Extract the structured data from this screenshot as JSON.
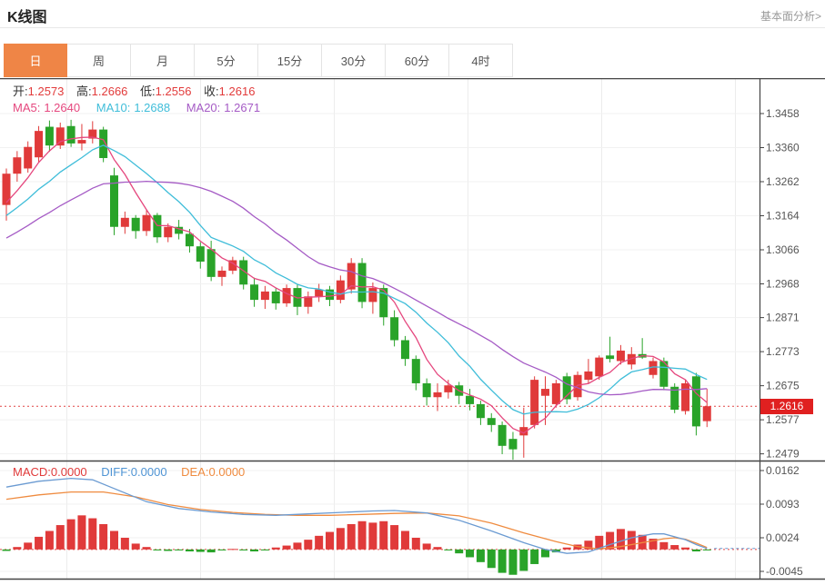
{
  "header": {
    "title": "K线图",
    "link": "基本面分析>"
  },
  "tabs": {
    "items": [
      "日",
      "周",
      "月",
      "5分",
      "15分",
      "30分",
      "60分",
      "4时"
    ],
    "selected": "日",
    "selected_index": 0
  },
  "quote": {
    "open_label": "开:",
    "open": "1.2573",
    "high_label": "高:",
    "high": "1.2666",
    "low_label": "低:",
    "low": "1.2556",
    "close_label": "收:",
    "close": "1.2616"
  },
  "ma_legend": {
    "ma5_label": "MA5:",
    "ma5": "1.2640",
    "ma10_label": "MA10:",
    "ma10": "1.2688",
    "ma20_label": "MA20:",
    "ma20": "1.2671"
  },
  "macd_legend": {
    "macd_label": "MACD:",
    "macd": "0.0000",
    "diff_label": "DIFF:",
    "diff": "0.0000",
    "dea_label": "DEA:",
    "dea": "0.0000"
  },
  "price_marker": {
    "value": "1.2616",
    "price": 1.2616
  },
  "colors": {
    "accent_tab": "#ef8546",
    "up_red": "#e03a3a",
    "down_green": "#29a329",
    "value_red": "#e23b3b",
    "label_dark": "#333333",
    "ma5_pink": "#e5477e",
    "ma10_cyan": "#3fbdd9",
    "ma20_purple": "#a55bc5",
    "diff_blue": "#6b9bd2",
    "diff_label_blue": "#4f94d4",
    "dea_orange": "#ef8b3f",
    "badge_red": "#e02020",
    "dotted_line_red": "#e04343",
    "axis_text": "#555555",
    "frame": "#444444",
    "grid": "#f1f1f1",
    "vgrid": "#ececec",
    "link_gray": "#999999"
  },
  "chart_data": {
    "type": "candlestick",
    "title": "K线图",
    "interval": "日",
    "legend_position": "top-left",
    "grid": true,
    "main": {
      "ylabel": "price",
      "yticks": [
        1.3458,
        1.336,
        1.3262,
        1.3164,
        1.3066,
        1.2968,
        1.2871,
        1.2773,
        1.2675,
        1.2577,
        1.2479
      ],
      "ylim": [
        1.243,
        1.351
      ],
      "last_price": 1.2616,
      "ohlc_latest": {
        "open": 1.2573,
        "high": 1.2666,
        "low": 1.2556,
        "close": 1.2616
      },
      "ma_values_latest": {
        "ma5": 1.264,
        "ma10": 1.2688,
        "ma20": 1.2671
      },
      "ma_periods": [
        5,
        10,
        20
      ],
      "ma_seed_implied": [
        1.298,
        1.2992,
        1.3004,
        1.3017,
        1.3029,
        1.3041,
        1.3053,
        1.3065,
        1.3078,
        1.309,
        1.3102,
        1.3114,
        1.3127,
        1.3139,
        1.3151,
        1.3163,
        1.3175,
        1.3188,
        1.32
      ],
      "candles": [
        [
          1.3195,
          1.33,
          1.315,
          1.3285
        ],
        [
          1.3285,
          1.335,
          1.3262,
          1.3332
        ],
        [
          1.33,
          1.3378,
          1.3288,
          1.3362
        ],
        [
          1.3332,
          1.3422,
          1.3318,
          1.3408
        ],
        [
          1.342,
          1.3438,
          1.3348,
          1.3366
        ],
        [
          1.3366,
          1.3432,
          1.3356,
          1.3418
        ],
        [
          1.3422,
          1.344,
          1.3362,
          1.3372
        ],
        [
          1.3372,
          1.3428,
          1.3352,
          1.3382
        ],
        [
          1.3386,
          1.3436,
          1.3372,
          1.3412
        ],
        [
          1.3412,
          1.342,
          1.3318,
          1.333
        ],
        [
          1.328,
          1.3302,
          1.3108,
          1.3132
        ],
        [
          1.3132,
          1.3176,
          1.3112,
          1.3158
        ],
        [
          1.3158,
          1.3166,
          1.3098,
          1.312
        ],
        [
          1.312,
          1.3182,
          1.3106,
          1.3166
        ],
        [
          1.3166,
          1.3172,
          1.3086,
          1.3102
        ],
        [
          1.3102,
          1.3142,
          1.3088,
          1.3132
        ],
        [
          1.3132,
          1.3152,
          1.3096,
          1.3112
        ],
        [
          1.3112,
          1.3126,
          1.3058,
          1.3076
        ],
        [
          1.3076,
          1.3088,
          1.3012,
          1.3032
        ],
        [
          1.3068,
          1.3092,
          1.2976,
          1.2988
        ],
        [
          1.2988,
          1.3018,
          1.2962,
          1.3006
        ],
        [
          1.3006,
          1.3046,
          1.2996,
          1.3036
        ],
        [
          1.3036,
          1.3046,
          1.2952,
          1.2966
        ],
        [
          1.2966,
          1.2986,
          1.2902,
          1.2922
        ],
        [
          1.2922,
          1.2962,
          1.2896,
          1.2946
        ],
        [
          1.2946,
          1.2956,
          1.2894,
          1.2912
        ],
        [
          1.2912,
          1.2966,
          1.2902,
          1.2956
        ],
        [
          1.2956,
          1.2966,
          1.2878,
          1.2902
        ],
        [
          1.2902,
          1.2946,
          1.2882,
          1.2932
        ],
        [
          1.2932,
          1.2968,
          1.2916,
          1.2952
        ],
        [
          1.2952,
          1.2962,
          1.2904,
          1.2922
        ],
        [
          1.2922,
          1.2992,
          1.2912,
          1.2978
        ],
        [
          1.2952,
          1.3042,
          1.294,
          1.3028
        ],
        [
          1.3028,
          1.3042,
          1.2898,
          1.2916
        ],
        [
          1.2916,
          1.2972,
          1.2882,
          1.2956
        ],
        [
          1.2956,
          1.2966,
          1.2848,
          1.2872
        ],
        [
          1.2872,
          1.2892,
          1.2788,
          1.2806
        ],
        [
          1.2806,
          1.2818,
          1.2732,
          1.2752
        ],
        [
          1.2752,
          1.2762,
          1.2662,
          1.2682
        ],
        [
          1.2682,
          1.2696,
          1.2618,
          1.2642
        ],
        [
          1.2642,
          1.2682,
          1.2602,
          1.2656
        ],
        [
          1.2656,
          1.2692,
          1.2638,
          1.2676
        ],
        [
          1.2676,
          1.2686,
          1.2622,
          1.2646
        ],
        [
          1.2646,
          1.2666,
          1.2604,
          1.2622
        ],
        [
          1.2622,
          1.2632,
          1.2562,
          1.2582
        ],
        [
          1.2582,
          1.2596,
          1.2542,
          1.2562
        ],
        [
          1.2562,
          1.2572,
          1.2478,
          1.2502
        ],
        [
          1.2522,
          1.2542,
          1.2462,
          1.2492
        ],
        [
          1.2532,
          1.2612,
          1.2468,
          1.2556
        ],
        [
          1.2562,
          1.2702,
          1.2552,
          1.2692
        ],
        [
          1.2646,
          1.2702,
          1.2562,
          1.2666
        ],
        [
          1.2622,
          1.2692,
          1.2612,
          1.2682
        ],
        [
          1.2702,
          1.2712,
          1.2622,
          1.2636
        ],
        [
          1.2642,
          1.2716,
          1.2632,
          1.2706
        ],
        [
          1.2692,
          1.2752,
          1.2682,
          1.2716
        ],
        [
          1.2702,
          1.2762,
          1.2692,
          1.2756
        ],
        [
          1.2762,
          1.2816,
          1.2742,
          1.2752
        ],
        [
          1.2746,
          1.2792,
          1.2736,
          1.2776
        ],
        [
          1.2736,
          1.2786,
          1.2722,
          1.2766
        ],
        [
          1.2766,
          1.2812,
          1.2752,
          1.2756
        ],
        [
          1.2706,
          1.2756,
          1.2696,
          1.2746
        ],
        [
          1.2746,
          1.2756,
          1.2662,
          1.2672
        ],
        [
          1.2672,
          1.2682,
          1.2596,
          1.2606
        ],
        [
          1.2602,
          1.2692,
          1.2592,
          1.2682
        ],
        [
          1.2702,
          1.2712,
          1.2532,
          1.2558
        ],
        [
          1.2573,
          1.2666,
          1.2556,
          1.2616
        ]
      ]
    },
    "macd": {
      "yticks": [
        0.0162,
        0.0093,
        0.0024,
        -0.0045
      ],
      "values_latest": {
        "macd": 0.0,
        "diff": 0.0,
        "dea": 0.0
      },
      "histogram": [
        -0.0003,
        0.0005,
        0.0014,
        0.0026,
        0.0038,
        0.005,
        0.0062,
        0.007,
        0.0064,
        0.0052,
        0.0038,
        0.0024,
        0.0012,
        0.0005,
        -0.0002,
        -0.0003,
        -0.0002,
        -0.0004,
        -0.0005,
        -0.0006,
        -0.0002,
        0.0001,
        -0.0002,
        -0.0004,
        -0.0002,
        0.0004,
        0.0008,
        0.0014,
        0.002,
        0.0028,
        0.0036,
        0.0044,
        0.0052,
        0.0058,
        0.0055,
        0.0058,
        0.005,
        0.0038,
        0.0024,
        0.0012,
        0.0005,
        -0.0002,
        -0.0008,
        -0.0016,
        -0.0026,
        -0.0038,
        -0.0048,
        -0.0052,
        -0.0044,
        -0.003,
        -0.0016,
        -0.0006,
        0.0004,
        0.001,
        0.0018,
        0.0028,
        0.0036,
        0.0042,
        0.0038,
        0.003,
        0.0022,
        0.0015,
        0.0009,
        0.0004,
        -0.0004,
        -0.0002
      ],
      "diff_points": [
        [
          0,
          0.0128
        ],
        [
          3,
          0.014
        ],
        [
          6,
          0.0146
        ],
        [
          8,
          0.0143
        ],
        [
          10,
          0.0125
        ],
        [
          13,
          0.0098
        ],
        [
          16,
          0.0084
        ],
        [
          19,
          0.0077
        ],
        [
          22,
          0.0072
        ],
        [
          25,
          0.007
        ],
        [
          28,
          0.0073
        ],
        [
          31,
          0.0076
        ],
        [
          34,
          0.0079
        ],
        [
          36,
          0.008
        ],
        [
          39,
          0.0075
        ],
        [
          42,
          0.006
        ],
        [
          45,
          0.0038
        ],
        [
          48,
          0.0014
        ],
        [
          50,
          0.0
        ],
        [
          52,
          -0.0008
        ],
        [
          54,
          -0.0005
        ],
        [
          56,
          0.001
        ],
        [
          58,
          0.0024
        ],
        [
          60,
          0.0032
        ],
        [
          61,
          0.0032
        ],
        [
          63,
          0.002
        ],
        [
          64,
          0.001
        ],
        [
          65,
          0.0002
        ]
      ],
      "dea_points": [
        [
          0,
          0.0103
        ],
        [
          3,
          0.0112
        ],
        [
          6,
          0.0118
        ],
        [
          9,
          0.0118
        ],
        [
          12,
          0.0108
        ],
        [
          15,
          0.0092
        ],
        [
          18,
          0.0082
        ],
        [
          21,
          0.0076
        ],
        [
          24,
          0.0072
        ],
        [
          27,
          0.007
        ],
        [
          30,
          0.007
        ],
        [
          33,
          0.0072
        ],
        [
          36,
          0.0074
        ],
        [
          39,
          0.0075
        ],
        [
          42,
          0.0069
        ],
        [
          45,
          0.0054
        ],
        [
          48,
          0.0034
        ],
        [
          51,
          0.0016
        ],
        [
          53,
          0.0006
        ],
        [
          55,
          0.0001
        ],
        [
          57,
          0.0006
        ],
        [
          59,
          0.0014
        ],
        [
          61,
          0.0022
        ],
        [
          62,
          0.0024
        ],
        [
          63,
          0.0021
        ],
        [
          64,
          0.0013
        ],
        [
          65,
          0.0004
        ]
      ],
      "tail_value": 0.0002
    }
  }
}
